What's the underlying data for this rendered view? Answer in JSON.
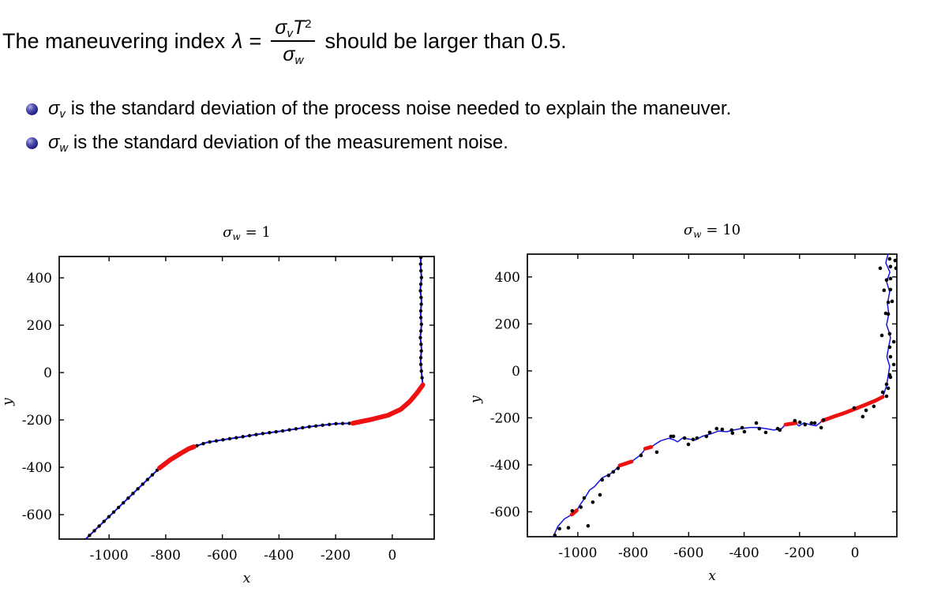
{
  "header": {
    "line": {
      "prefix": "The maneuvering index",
      "lambda": "λ",
      "equals": "=",
      "suffix": "should be larger than 0.5."
    },
    "fraction": {
      "num_sigma": "σ",
      "num_sigma_sub": "v",
      "num_T": "T",
      "num_T_sup": "2",
      "den_sigma": "σ",
      "den_sigma_sub": "w"
    },
    "bullets": [
      {
        "sigma": "σ",
        "sub": "v",
        "rest": "is the standard deviation of the process noise needed to explain the maneuver."
      },
      {
        "sigma": "σ",
        "sub": "w",
        "rest": "is the standard deviation of the measurement noise."
      }
    ]
  },
  "colors": {
    "text": "#000000",
    "axis": "#000000",
    "track_line": "#1515e0",
    "marker_dot": "#050505",
    "maneuver_red": "#ee1111",
    "bullet_ball": "#20207e"
  },
  "chart_data": [
    {
      "type": "line",
      "title": {
        "sigma": "σ",
        "sub": "w",
        "rest": "= 1"
      },
      "xlabel": "x",
      "ylabel": "y",
      "xlim": [
        -1176,
        148
      ],
      "ylim": [
        -703,
        490
      ],
      "xticks": [
        -1000,
        -800,
        -600,
        -400,
        -200,
        0
      ],
      "yticks": [
        -600,
        -400,
        -200,
        0,
        200,
        400
      ],
      "grid": false,
      "legend": null,
      "line_points": [
        [
          -1086,
          -707
        ],
        [
          -822,
          -403
        ],
        [
          -786,
          -370
        ],
        [
          -748,
          -342
        ],
        [
          -718,
          -321
        ],
        [
          -700,
          -313
        ],
        [
          -655,
          -295
        ],
        [
          -610,
          -286
        ],
        [
          -540,
          -273
        ],
        [
          -460,
          -258
        ],
        [
          -380,
          -245
        ],
        [
          -290,
          -228
        ],
        [
          -200,
          -216
        ],
        [
          -140,
          -214
        ],
        [
          -75,
          -198
        ],
        [
          -15,
          -180
        ],
        [
          30,
          -155
        ],
        [
          62,
          -122
        ],
        [
          88,
          -85
        ],
        [
          108,
          -52
        ],
        [
          103,
          0
        ],
        [
          100,
          50
        ],
        [
          103,
          100
        ],
        [
          99,
          150
        ],
        [
          103,
          200
        ],
        [
          100,
          250
        ],
        [
          103,
          300
        ],
        [
          99,
          350
        ],
        [
          103,
          400
        ],
        [
          100,
          450
        ],
        [
          101,
          490
        ]
      ],
      "maneuvers": [
        [
          [
            -822,
            -403
          ],
          [
            -786,
            -370
          ],
          [
            -748,
            -342
          ],
          [
            -718,
            -321
          ],
          [
            -700,
            -313
          ]
        ],
        [
          [
            -140,
            -214
          ],
          [
            -75,
            -198
          ],
          [
            -15,
            -180
          ],
          [
            30,
            -155
          ],
          [
            62,
            -122
          ],
          [
            88,
            -85
          ],
          [
            108,
            -52
          ]
        ]
      ],
      "scatter_points": []
    },
    {
      "type": "line",
      "title": {
        "sigma": "σ",
        "sub": "w",
        "rest": "= 10"
      },
      "xlabel": "x",
      "ylabel": "y",
      "xlim": [
        -1182,
        151
      ],
      "ylim": [
        -706,
        497
      ],
      "xticks": [
        -1000,
        -800,
        -600,
        -400,
        -200,
        0
      ],
      "yticks": [
        -600,
        -400,
        -200,
        0,
        200,
        400
      ],
      "grid": false,
      "legend": null,
      "line_points": [
        [
          -1091,
          -713
        ],
        [
          -1072,
          -662
        ],
        [
          -1048,
          -630
        ],
        [
          -1022,
          -612
        ],
        [
          -1004,
          -594
        ],
        [
          -993,
          -572
        ],
        [
          -977,
          -545
        ],
        [
          -957,
          -507
        ],
        [
          -940,
          -493
        ],
        [
          -912,
          -455
        ],
        [
          -884,
          -440
        ],
        [
          -863,
          -419
        ],
        [
          -849,
          -403
        ],
        [
          -835,
          -396
        ],
        [
          -806,
          -386
        ],
        [
          -778,
          -362
        ],
        [
          -764,
          -344
        ],
        [
          -757,
          -331
        ],
        [
          -735,
          -324
        ],
        [
          -718,
          -310
        ],
        [
          -700,
          -297
        ],
        [
          -672,
          -287
        ],
        [
          -654,
          -293
        ],
        [
          -640,
          -302
        ],
        [
          -622,
          -286
        ],
        [
          -600,
          -290
        ],
        [
          -578,
          -295
        ],
        [
          -549,
          -278
        ],
        [
          -520,
          -268
        ],
        [
          -492,
          -256
        ],
        [
          -463,
          -259
        ],
        [
          -435,
          -251
        ],
        [
          -406,
          -245
        ],
        [
          -378,
          -241
        ],
        [
          -349,
          -241
        ],
        [
          -320,
          -246
        ],
        [
          -292,
          -252
        ],
        [
          -264,
          -245
        ],
        [
          -251,
          -229
        ],
        [
          -230,
          -224
        ],
        [
          -214,
          -222
        ],
        [
          -202,
          -235
        ],
        [
          -184,
          -221
        ],
        [
          -160,
          -230
        ],
        [
          -140,
          -234
        ],
        [
          -117,
          -212
        ],
        [
          -80,
          -196
        ],
        [
          -40,
          -180
        ],
        [
          0,
          -162
        ],
        [
          40,
          -143
        ],
        [
          75,
          -126
        ],
        [
          100,
          -111
        ],
        [
          108,
          -85
        ],
        [
          114,
          -61
        ],
        [
          120,
          -20
        ],
        [
          125,
          20
        ],
        [
          115,
          60
        ],
        [
          121,
          100
        ],
        [
          128,
          140
        ],
        [
          124,
          162
        ],
        [
          114,
          196
        ],
        [
          122,
          242
        ],
        [
          117,
          286
        ],
        [
          125,
          336
        ],
        [
          114,
          380
        ],
        [
          126,
          420
        ],
        [
          111,
          460
        ],
        [
          119,
          497
        ]
      ],
      "maneuvers": [
        [
          [
            -1022,
            -612
          ],
          [
            -1004,
            -594
          ]
        ],
        [
          [
            -849,
            -403
          ],
          [
            -806,
            -386
          ]
        ],
        [
          [
            -757,
            -331
          ],
          [
            -735,
            -324
          ]
        ],
        [
          [
            -251,
            -229
          ],
          [
            -214,
            -222
          ]
        ],
        [
          [
            -117,
            -212
          ],
          [
            -80,
            -196
          ],
          [
            -40,
            -180
          ],
          [
            0,
            -162
          ],
          [
            40,
            -143
          ],
          [
            75,
            -126
          ],
          [
            100,
            -111
          ]
        ]
      ],
      "scatter_points": [
        [
          -1083,
          -700
        ],
        [
          -1066,
          -672
        ],
        [
          -1034,
          -668
        ],
        [
          -1020,
          -596
        ],
        [
          -989,
          -580
        ],
        [
          -963,
          -660
        ],
        [
          -977,
          -541
        ],
        [
          -946,
          -559
        ],
        [
          -920,
          -528
        ],
        [
          -912,
          -464
        ],
        [
          -889,
          -445
        ],
        [
          -872,
          -430
        ],
        [
          -855,
          -415
        ],
        [
          -772,
          -360
        ],
        [
          -715,
          -346
        ],
        [
          -664,
          -279
        ],
        [
          -655,
          -279
        ],
        [
          -615,
          -286
        ],
        [
          -601,
          -313
        ],
        [
          -584,
          -292
        ],
        [
          -570,
          -286
        ],
        [
          -536,
          -279
        ],
        [
          -524,
          -262
        ],
        [
          -499,
          -246
        ],
        [
          -479,
          -249
        ],
        [
          -445,
          -252
        ],
        [
          -442,
          -265
        ],
        [
          -407,
          -242
        ],
        [
          -399,
          -259
        ],
        [
          -356,
          -222
        ],
        [
          -345,
          -246
        ],
        [
          -322,
          -262
        ],
        [
          -279,
          -246
        ],
        [
          -271,
          -252
        ],
        [
          -217,
          -212
        ],
        [
          -199,
          -219
        ],
        [
          -180,
          -229
        ],
        [
          -157,
          -222
        ],
        [
          -145,
          -222
        ],
        [
          -122,
          -242
        ],
        [
          -114,
          -209
        ],
        [
          -3,
          -158
        ],
        [
          28,
          -195
        ],
        [
          40,
          -168
        ],
        [
          68,
          -151
        ],
        [
          100,
          -91
        ],
        [
          114,
          -108
        ],
        [
          120,
          -74
        ],
        [
          114,
          -57
        ],
        [
          128,
          -27
        ],
        [
          125,
          -17
        ],
        [
          140,
          27
        ],
        [
          128,
          60
        ],
        [
          125,
          101
        ],
        [
          140,
          124
        ],
        [
          125,
          158
        ],
        [
          97,
          151
        ],
        [
          111,
          245
        ],
        [
          120,
          242
        ],
        [
          120,
          292
        ],
        [
          134,
          296
        ],
        [
          105,
          343
        ],
        [
          128,
          346
        ],
        [
          114,
          387
        ],
        [
          128,
          393
        ],
        [
          91,
          437
        ],
        [
          128,
          444
        ],
        [
          148,
          437
        ],
        [
          125,
          477
        ],
        [
          145,
          470
        ]
      ]
    }
  ]
}
